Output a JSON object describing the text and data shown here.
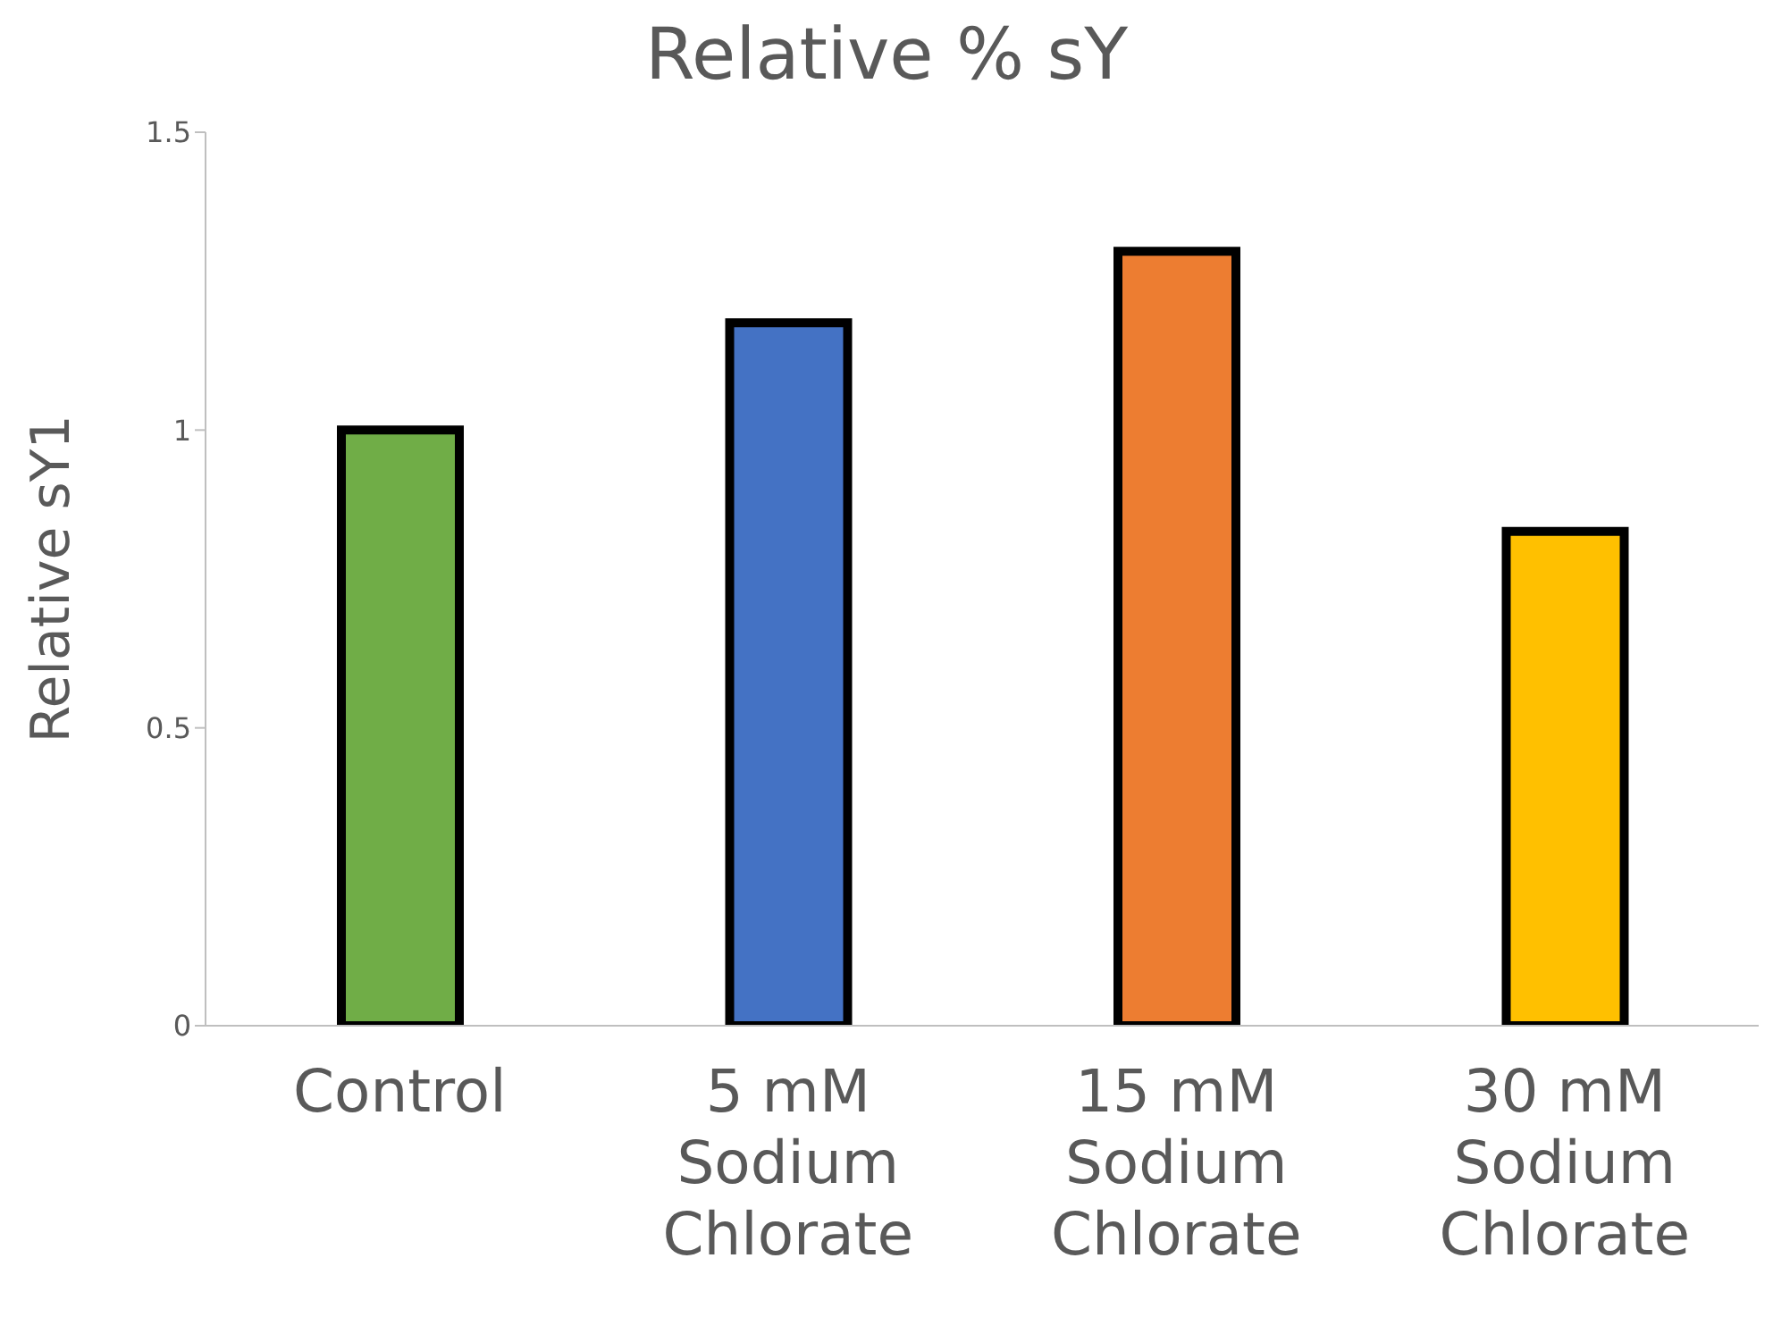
{
  "chart_data": {
    "type": "bar",
    "title": "Relative % sY",
    "ylabel": "Relative sY1",
    "categories": [
      "Control",
      "5 mM Sodium Chlorate",
      "15 mM Sodium Chlorate",
      "30 mM Sodium Chlorate"
    ],
    "values": [
      1.0,
      1.18,
      1.3,
      0.83
    ],
    "colors": [
      "#70ad47",
      "#4472c4",
      "#ed7d31",
      "#ffc000"
    ],
    "ylim": [
      0,
      1.5
    ],
    "yticks": [
      0,
      0.5,
      1,
      1.5
    ],
    "grid": false,
    "legend": false
  }
}
